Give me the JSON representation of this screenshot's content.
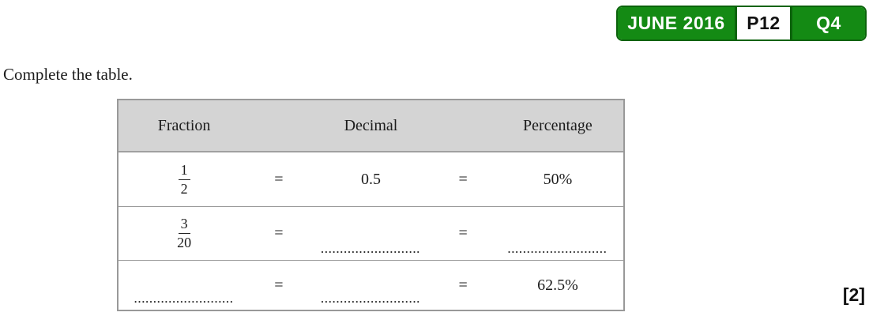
{
  "header_badge": {
    "session_label": "JUNE 2016",
    "paper_label": "P12",
    "question_label": "Q4",
    "green_color": "#148a14",
    "dark_green_color": "#0c630c"
  },
  "question": {
    "instruction": "Complete the table.",
    "marks": "[2]"
  },
  "table": {
    "header": {
      "fraction": "Fraction",
      "decimal": "Decimal",
      "percentage": "Percentage"
    },
    "header_bg_color": "#d4d4d4",
    "equals_sign": "=",
    "rows": [
      {
        "fraction": {
          "numerator": "1",
          "denominator": "2"
        },
        "decimal": "0.5",
        "percentage": "50%"
      },
      {
        "fraction": {
          "numerator": "3",
          "denominator": "20"
        },
        "decimal_blank": "..........................",
        "percentage_blank": ".........................."
      },
      {
        "fraction_blank": "..........................",
        "decimal_blank": "..........................",
        "percentage": "62.5%"
      }
    ]
  }
}
